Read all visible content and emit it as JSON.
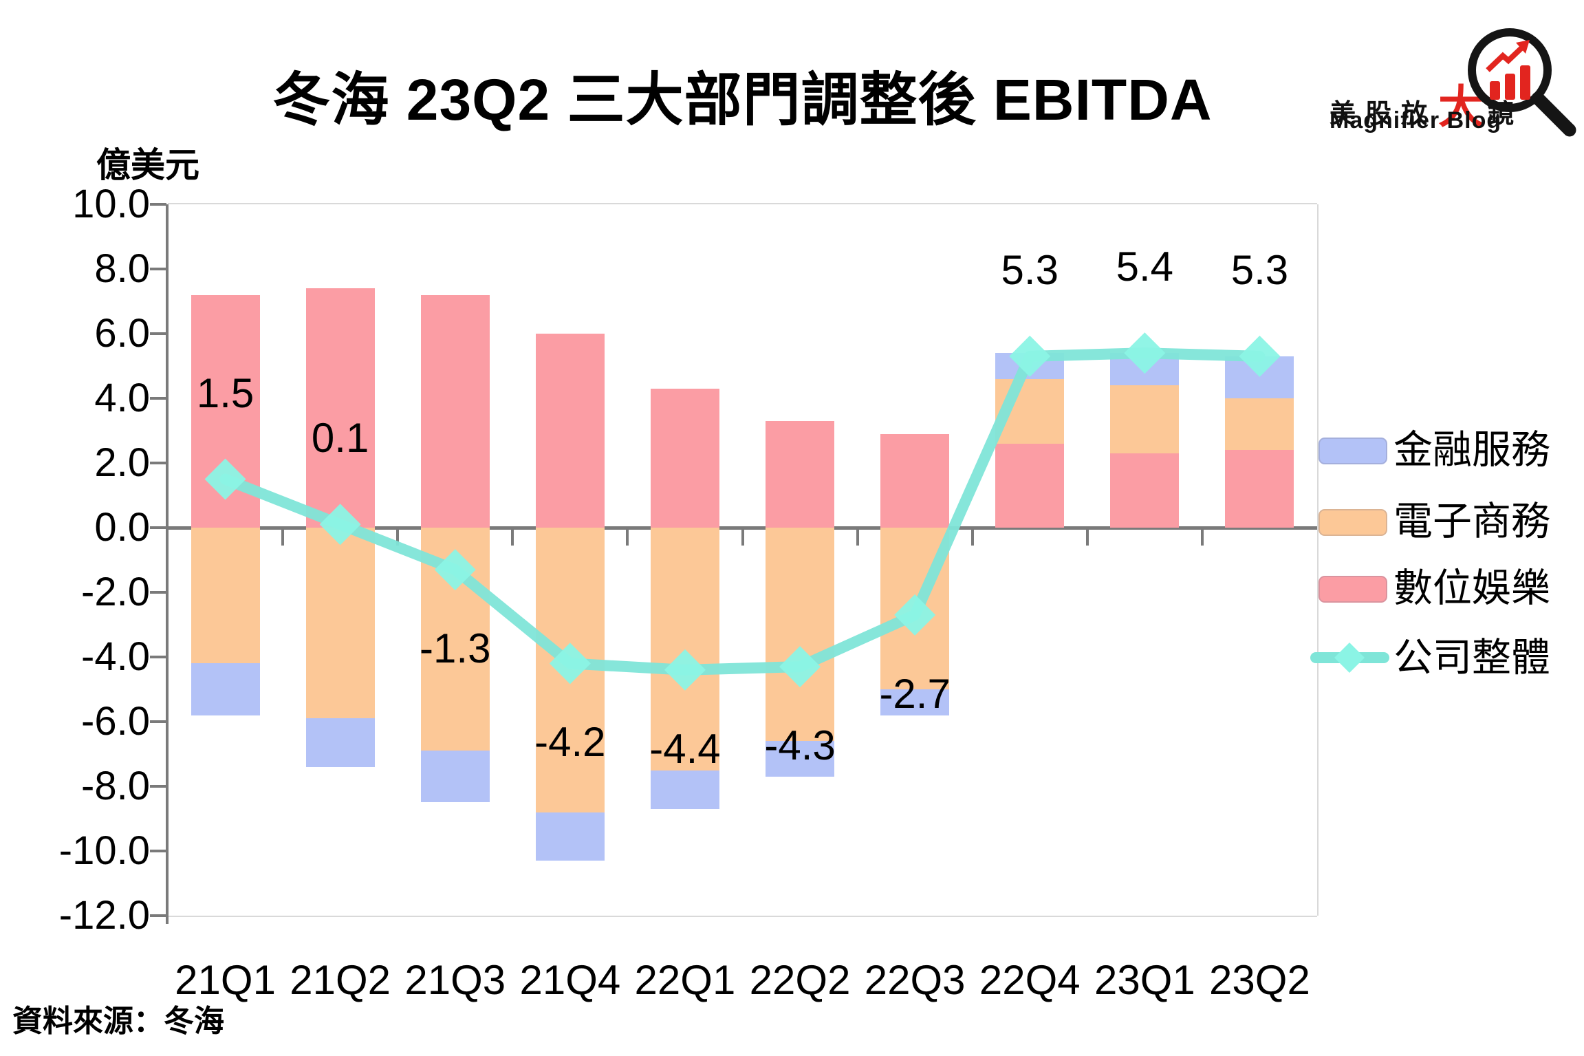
{
  "title": "冬海 23Q2 三大部門調整後 EBITDA",
  "y_axis_title": "億美元",
  "source": "資料來源：冬海",
  "logo": {
    "cn_pre": "美股放",
    "cn_big": "大",
    "cn_post": "鏡",
    "en": "Magnifier Blog",
    "accent_color": "#E2251F",
    "icon": "magnifier-with-rising-bar-chart"
  },
  "chart_data": {
    "type": "bar",
    "subtype": "stacked-bar-with-line-overlay",
    "unit": "億美元",
    "categories": [
      "21Q1",
      "21Q2",
      "21Q3",
      "21Q4",
      "22Q1",
      "22Q2",
      "22Q3",
      "22Q4",
      "23Q1",
      "23Q2"
    ],
    "series": [
      {
        "name": "金融服務",
        "type": "bar",
        "color": "#B3C2F7",
        "values": [
          -1.6,
          -1.5,
          -1.6,
          -1.5,
          -1.2,
          -1.1,
          -0.8,
          0.8,
          1.0,
          1.3
        ]
      },
      {
        "name": "電子商務",
        "type": "bar",
        "color": "#FCC897",
        "values": [
          -4.2,
          -5.9,
          -6.9,
          -8.8,
          -7.5,
          -6.6,
          -5.0,
          2.0,
          2.1,
          1.6
        ]
      },
      {
        "name": "數位娛樂",
        "type": "bar",
        "color": "#FB9DA4",
        "values": [
          7.2,
          7.4,
          7.2,
          6.0,
          4.3,
          3.3,
          2.9,
          2.6,
          2.3,
          2.4
        ]
      },
      {
        "name": "公司整體",
        "type": "line",
        "color": "#7FE5D8",
        "marker": "diamond",
        "marker_color": "#8BF4E5",
        "values": [
          1.5,
          0.1,
          -1.3,
          -4.2,
          -4.4,
          -4.3,
          -2.7,
          5.3,
          5.4,
          5.3
        ],
        "labels": [
          "1.5",
          "0.1",
          "-1.3",
          "-4.2",
          "-4.4",
          "-4.3",
          "-2.7",
          "5.3",
          "5.4",
          "5.3"
        ]
      }
    ],
    "ylim": [
      -12,
      10
    ],
    "ytick_step": 2,
    "ytick_labels": [
      "10.0",
      "8.0",
      "6.0",
      "4.0",
      "2.0",
      "0.0",
      "-2.0",
      "-4.0",
      "-6.0",
      "-8.0",
      "-10.0",
      "-12.0"
    ],
    "grid": "off",
    "legend_position": "right",
    "axis_color": "#7A7A7A",
    "frame_color": "#D9D9D9"
  }
}
